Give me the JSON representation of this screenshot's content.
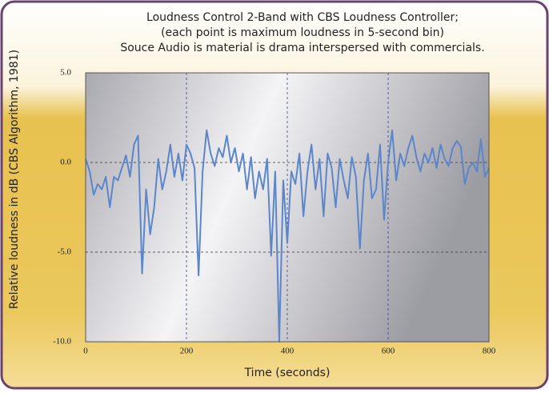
{
  "chart_data": {
    "type": "line",
    "title_lines": [
      "Loudness Control 2-Band with CBS Loudness Controller;",
      "(each point is maximum loudness in 5-second bin)",
      "Souce Audio is material is drama interspersed with commercials."
    ],
    "xlabel": "Time (seconds)",
    "ylabel": "Relative loudness in dB (CBS Algorithm, 1981)",
    "xlim": [
      0,
      800
    ],
    "ylim": [
      -10,
      5
    ],
    "xticks": [
      0,
      200,
      400,
      600,
      800
    ],
    "yticks": [
      {
        "value": 5,
        "label": "5.0"
      },
      {
        "value": 0,
        "label": "0.0"
      },
      {
        "value": -5,
        "label": "-5.0"
      },
      {
        "value": -10,
        "label": "-10.0"
      }
    ],
    "grid": true,
    "series": [
      {
        "color": "#5b86c9",
        "x": [
          0,
          8,
          16,
          24,
          32,
          40,
          48,
          56,
          64,
          72,
          80,
          88,
          96,
          104,
          112,
          120,
          128,
          136,
          144,
          152,
          160,
          168,
          176,
          184,
          192,
          200,
          208,
          216,
          224,
          232,
          240,
          248,
          256,
          264,
          272,
          280,
          288,
          296,
          304,
          312,
          320,
          328,
          336,
          344,
          352,
          360,
          368,
          376,
          384,
          392,
          400,
          408,
          416,
          424,
          432,
          440,
          448,
          456,
          464,
          472,
          480,
          488,
          496,
          504,
          512,
          520,
          528,
          536,
          544,
          552,
          560,
          568,
          576,
          584,
          592,
          600,
          608,
          616,
          624,
          632,
          640,
          648,
          656,
          664,
          672,
          680,
          688,
          696,
          704,
          712,
          720,
          728,
          736,
          744,
          752,
          760,
          768,
          776,
          784,
          792,
          800
        ],
        "values": [
          0.2,
          -0.5,
          -1.8,
          -1.2,
          -1.5,
          -0.8,
          -2.5,
          -0.8,
          -1.0,
          -0.3,
          0.4,
          -0.8,
          1.0,
          1.5,
          -6.2,
          -1.5,
          -4.0,
          -2.5,
          0.2,
          -1.5,
          -0.5,
          1.0,
          -0.8,
          0.5,
          -1.0,
          1.0,
          0.5,
          -0.3,
          -6.3,
          -0.5,
          1.8,
          0.5,
          -0.2,
          0.8,
          0.3,
          1.5,
          0.0,
          0.8,
          -0.5,
          0.5,
          -1.5,
          0.3,
          -2.0,
          -0.5,
          -1.5,
          0.2,
          -5.2,
          -0.5,
          -10.0,
          -1.0,
          -4.5,
          -0.5,
          -1.2,
          0.5,
          -3.0,
          -0.5,
          1.0,
          -1.5,
          0.2,
          -3.0,
          0.5,
          -0.3,
          -2.5,
          0.2,
          -1.0,
          -2.0,
          0.3,
          -0.8,
          -4.8,
          -1.0,
          0.5,
          -2.0,
          -1.5,
          1.0,
          -3.2,
          0.0,
          1.8,
          -1.0,
          0.5,
          -0.2,
          0.8,
          1.5,
          0.3,
          -0.5,
          0.5,
          0.0,
          0.8,
          -0.3,
          1.0,
          0.2,
          -0.2,
          0.8,
          1.2,
          0.9,
          -1.2,
          -0.3,
          0.0,
          -0.5,
          1.3,
          -0.8,
          -0.3
        ]
      }
    ]
  }
}
